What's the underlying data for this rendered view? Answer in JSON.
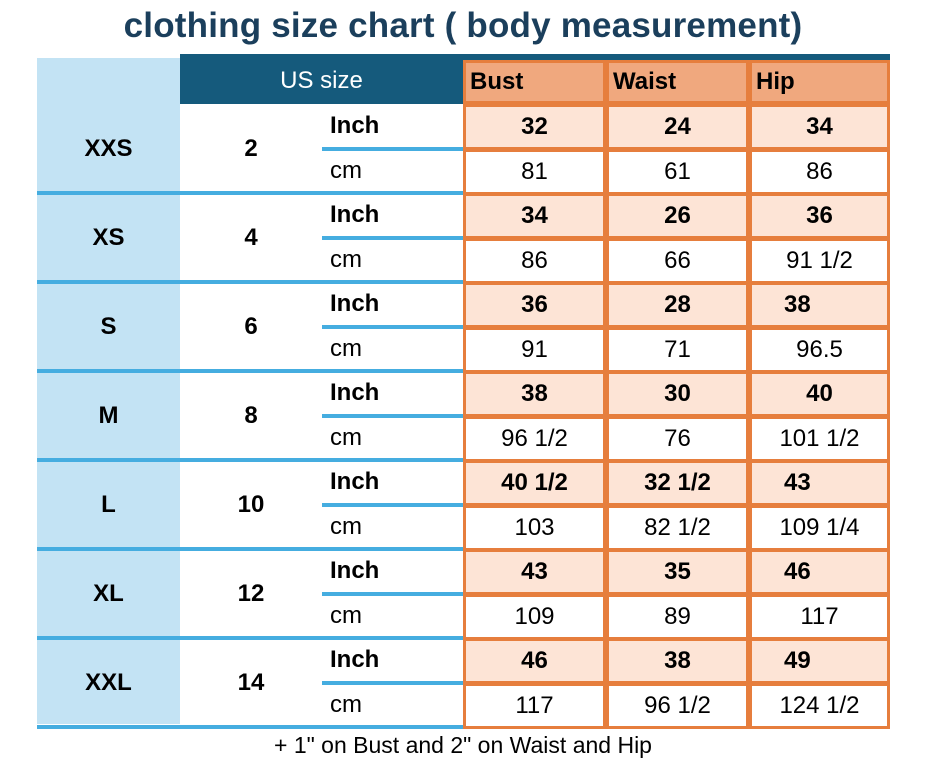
{
  "title": "clothing size chart ( body measurement)",
  "header": {
    "us_size": "US size",
    "bust": "Bust",
    "waist": "Waist",
    "hip": "Hip"
  },
  "rows": [
    {
      "size": "XXS",
      "us": "2",
      "inch_label": "Inch",
      "cm_label": "cm",
      "inch": {
        "bust": "32",
        "waist": "24",
        "hip": "34"
      },
      "cm": {
        "bust": "81",
        "waist": "61",
        "hip": "86"
      }
    },
    {
      "size": "XS",
      "us": "4",
      "inch_label": "Inch",
      "cm_label": "cm",
      "inch": {
        "bust": "34",
        "waist": "26",
        "hip": "36"
      },
      "cm": {
        "bust": "86",
        "waist": "66",
        "hip": "91 1/2"
      }
    },
    {
      "size": "S",
      "us": "6",
      "inch_label": "Inch",
      "cm_label": "cm",
      "inch": {
        "bust": "36",
        "waist": "28",
        "hip": "38"
      },
      "cm": {
        "bust": "91",
        "waist": "71",
        "hip": "96.5"
      }
    },
    {
      "size": "M",
      "us": "8",
      "inch_label": "Inch",
      "cm_label": "cm",
      "inch": {
        "bust": "38",
        "waist": "30",
        "hip": "40"
      },
      "cm": {
        "bust": "96 1/2",
        "waist": "76",
        "hip": "101 1/2"
      }
    },
    {
      "size": "L",
      "us": "10",
      "inch_label": "Inch",
      "cm_label": "cm",
      "inch": {
        "bust": "40 1/2",
        "waist": "32 1/2",
        "hip": "43"
      },
      "cm": {
        "bust": "103",
        "waist": "82 1/2",
        "hip": "109 1/4"
      }
    },
    {
      "size": "XL",
      "us": "12",
      "inch_label": "Inch",
      "cm_label": "cm",
      "inch": {
        "bust": "43",
        "waist": "35",
        "hip": "46"
      },
      "cm": {
        "bust": "109",
        "waist": "89",
        "hip": "117"
      }
    },
    {
      "size": "XXL",
      "us": "14",
      "inch_label": "Inch",
      "cm_label": "cm",
      "inch": {
        "bust": "46",
        "waist": "38",
        "hip": "49"
      },
      "cm": {
        "bust": "117",
        "waist": "96 1/2",
        "hip": "124 1/2"
      }
    }
  ],
  "footnote": "+ 1\" on Bust and 2\" on Waist and Hip"
}
